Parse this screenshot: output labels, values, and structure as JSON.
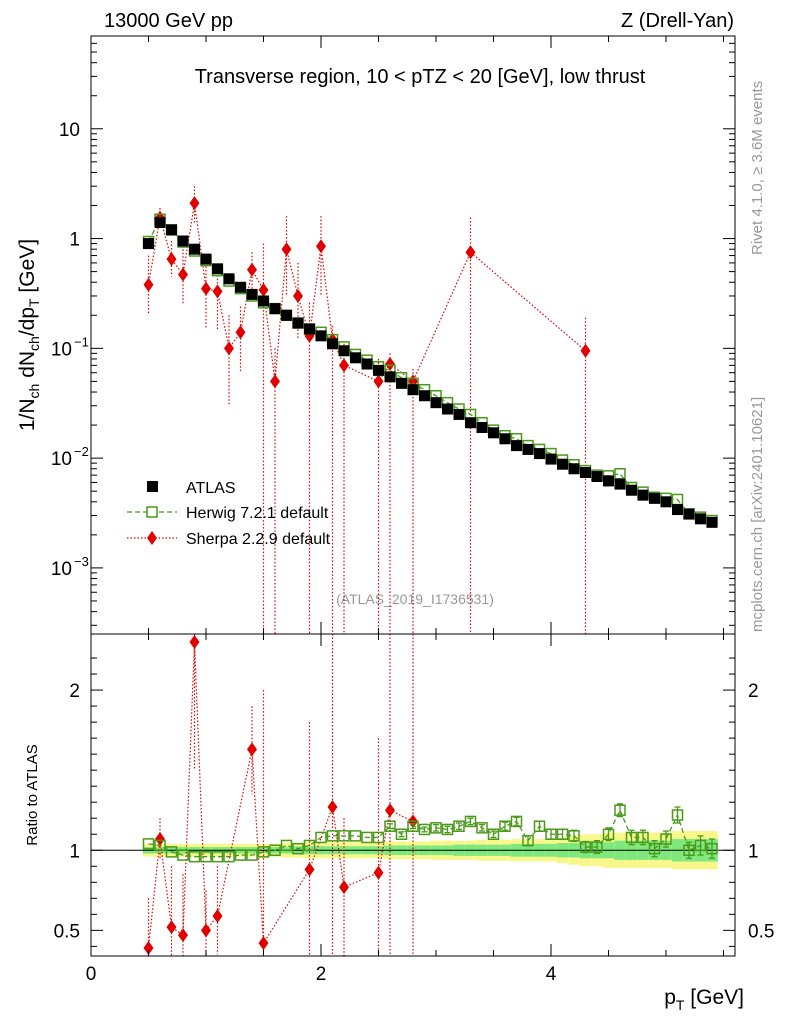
{
  "header": {
    "left": "13000 GeV pp",
    "right": "Z (Drell-Yan)",
    "title": "Transverse region, 10 < pTZ < 20 [GeV], low thrust"
  },
  "side": {
    "rivet": "Rivet 4.1.0, ≥ 3.6M events",
    "mcplots": "mcplots.cern.ch [arXiv:2401.10621]"
  },
  "watermark": "(ATLAS_2019_I1736531)",
  "axes": {
    "ylabel_main": "1/Nch dNch/dpT [GeV]",
    "ylabel_ratio": "Ratio to ATLAS",
    "xlabel": "pT [GeV]"
  },
  "legend": [
    {
      "label": "ATLAS",
      "color": "#000000"
    },
    {
      "label": "Herwig 7.2.1 default",
      "color": "#4a9a1a"
    },
    {
      "label": "Sherpa 2.2.9 default",
      "color": "#e00000"
    }
  ],
  "colors": {
    "band_green": "#7ee87e",
    "band_yellow": "#f8f88a",
    "herwig": "#4a9a1a",
    "sherpa": "#e00000",
    "atlas": "#000000"
  },
  "chart_data": [
    {
      "type": "scatter",
      "name": "main",
      "xlim": [
        0,
        5.6
      ],
      "ylim": [
        0.00025,
        70
      ],
      "yscale": "log",
      "xticks": [
        0,
        2,
        4
      ],
      "yticks": [
        {
          "v": 10,
          "label": "10"
        },
        {
          "v": 1,
          "label": "1"
        },
        {
          "v": 0.1,
          "label": "10",
          "sup": "−1"
        },
        {
          "v": 0.01,
          "label": "10",
          "sup": "−2"
        },
        {
          "v": 0.001,
          "label": "10",
          "sup": "−3"
        }
      ],
      "atlas": {
        "x": [
          0.5,
          0.6,
          0.7,
          0.8,
          0.9,
          1.0,
          1.1,
          1.2,
          1.3,
          1.4,
          1.5,
          1.6,
          1.7,
          1.8,
          1.9,
          2.0,
          2.1,
          2.2,
          2.3,
          2.4,
          2.5,
          2.6,
          2.7,
          2.8,
          2.9,
          3.0,
          3.1,
          3.2,
          3.3,
          3.4,
          3.5,
          3.6,
          3.7,
          3.8,
          3.9,
          4.0,
          4.1,
          4.2,
          4.3,
          4.4,
          4.5,
          4.6,
          4.7,
          4.8,
          4.9,
          5.0,
          5.1,
          5.2,
          5.3,
          5.4
        ],
        "y": [
          0.9,
          1.4,
          1.2,
          0.95,
          0.8,
          0.65,
          0.53,
          0.43,
          0.36,
          0.31,
          0.27,
          0.23,
          0.2,
          0.17,
          0.15,
          0.13,
          0.11,
          0.095,
          0.082,
          0.072,
          0.063,
          0.055,
          0.048,
          0.042,
          0.037,
          0.032,
          0.028,
          0.025,
          0.021,
          0.019,
          0.017,
          0.015,
          0.013,
          0.012,
          0.011,
          0.0098,
          0.0088,
          0.008,
          0.0074,
          0.0068,
          0.0062,
          0.0058,
          0.0051,
          0.0046,
          0.0043,
          0.004,
          0.0034,
          0.0031,
          0.0028,
          0.0026
        ]
      },
      "herwig": {
        "x": [
          0.5,
          0.6,
          0.7,
          0.8,
          0.9,
          1.0,
          1.1,
          1.2,
          1.3,
          1.4,
          1.5,
          1.6,
          1.7,
          1.8,
          1.9,
          2.0,
          2.1,
          2.2,
          2.3,
          2.4,
          2.5,
          2.6,
          2.7,
          2.8,
          2.9,
          3.0,
          3.1,
          3.2,
          3.3,
          3.4,
          3.5,
          3.6,
          3.7,
          3.8,
          3.9,
          4.0,
          4.1,
          4.2,
          4.3,
          4.4,
          4.5,
          4.6,
          4.7,
          4.8,
          4.9,
          5.0,
          5.1,
          5.2,
          5.3,
          5.4
        ],
        "y": [
          0.94,
          1.5,
          1.2,
          0.93,
          0.77,
          0.63,
          0.51,
          0.41,
          0.35,
          0.3,
          0.26,
          0.23,
          0.2,
          0.17,
          0.15,
          0.14,
          0.12,
          0.103,
          0.088,
          0.078,
          0.068,
          0.063,
          0.054,
          0.048,
          0.042,
          0.037,
          0.032,
          0.028,
          0.025,
          0.021,
          0.018,
          0.016,
          0.015,
          0.013,
          0.012,
          0.011,
          0.0096,
          0.0087,
          0.0077,
          0.007,
          0.0069,
          0.0072,
          0.0054,
          0.0049,
          0.0044,
          0.0043,
          0.0042,
          0.0031,
          0.0029,
          0.0027
        ]
      },
      "sherpa": {
        "x": [
          0.5,
          0.6,
          0.7,
          0.8,
          0.9,
          1.0,
          1.1,
          1.2,
          1.3,
          1.4,
          1.5,
          1.6,
          1.7,
          1.8,
          1.9,
          2.0,
          2.1,
          2.2,
          2.5,
          2.6,
          2.8,
          3.3,
          4.3
        ],
        "y": [
          0.38,
          1.55,
          0.65,
          0.47,
          2.1,
          0.35,
          0.33,
          0.1,
          0.14,
          0.52,
          0.34,
          0.05,
          0.8,
          0.3,
          0.13,
          0.85,
          0.12,
          0.07,
          0.05,
          0.072,
          0.05,
          0.75,
          0.095
        ],
        "err_hi": [
          0.7,
          1.9,
          0.95,
          0.8,
          3.0,
          0.6,
          0.5,
          0.2,
          0.24,
          0.75,
          0.9,
          0.1,
          1.6,
          0.6,
          0.26,
          1.6,
          0.16,
          0.11,
          0.08,
          0.09,
          0.065,
          1.55,
          0.19
        ],
        "err_lo": [
          0.2,
          1.3,
          0.45,
          0.25,
          1.4,
          0.15,
          0.15,
          0.03,
          0.06,
          0.3,
          0.0,
          0.0,
          0.3,
          0.12,
          0.0,
          0.3,
          0.0,
          0.0,
          0.0,
          0.0,
          0.0,
          0.0,
          0.0
        ]
      }
    },
    {
      "type": "scatter",
      "name": "ratio",
      "xlim": [
        0,
        5.6
      ],
      "ylim": [
        0.34,
        2.35
      ],
      "xticks": [
        0,
        2,
        4
      ],
      "yticks": [
        0.5,
        1,
        2
      ],
      "band_x": [
        0.5,
        0.6,
        0.7,
        0.8,
        0.9,
        1.0,
        1.1,
        1.2,
        1.3,
        1.4,
        1.5,
        1.6,
        1.7,
        1.8,
        1.9,
        2.0,
        2.1,
        2.2,
        2.3,
        2.4,
        2.5,
        2.6,
        2.7,
        2.8,
        2.9,
        3.0,
        3.1,
        3.2,
        3.3,
        3.4,
        3.5,
        3.6,
        3.7,
        3.8,
        3.9,
        4.0,
        4.1,
        4.2,
        4.3,
        4.4,
        4.5,
        4.6,
        4.7,
        4.8,
        4.9,
        5.0,
        5.1,
        5.2,
        5.3,
        5.4
      ],
      "band_inner": [
        0.02,
        0.02,
        0.02,
        0.02,
        0.02,
        0.02,
        0.02,
        0.02,
        0.02,
        0.02,
        0.02,
        0.02,
        0.02,
        0.025,
        0.025,
        0.025,
        0.025,
        0.025,
        0.025,
        0.025,
        0.025,
        0.03,
        0.03,
        0.03,
        0.03,
        0.03,
        0.03,
        0.035,
        0.035,
        0.035,
        0.035,
        0.035,
        0.04,
        0.04,
        0.04,
        0.04,
        0.045,
        0.045,
        0.05,
        0.05,
        0.05,
        0.06,
        0.06,
        0.06,
        0.06,
        0.06,
        0.07,
        0.07,
        0.07,
        0.07
      ],
      "band_outer": [
        0.04,
        0.04,
        0.04,
        0.04,
        0.04,
        0.04,
        0.04,
        0.04,
        0.04,
        0.04,
        0.04,
        0.04,
        0.045,
        0.045,
        0.05,
        0.05,
        0.05,
        0.05,
        0.05,
        0.05,
        0.05,
        0.055,
        0.055,
        0.055,
        0.055,
        0.06,
        0.06,
        0.06,
        0.06,
        0.065,
        0.065,
        0.065,
        0.07,
        0.07,
        0.07,
        0.07,
        0.08,
        0.09,
        0.1,
        0.1,
        0.11,
        0.11,
        0.11,
        0.11,
        0.11,
        0.11,
        0.12,
        0.12,
        0.12,
        0.12
      ],
      "herwig": {
        "x": [
          0.5,
          0.6,
          0.7,
          0.8,
          0.9,
          1.0,
          1.1,
          1.2,
          1.3,
          1.4,
          1.5,
          1.6,
          1.7,
          1.8,
          1.9,
          2.0,
          2.1,
          2.2,
          2.3,
          2.4,
          2.5,
          2.6,
          2.7,
          2.8,
          2.9,
          3.0,
          3.1,
          3.2,
          3.3,
          3.4,
          3.5,
          3.6,
          3.7,
          3.8,
          3.9,
          4.0,
          4.1,
          4.2,
          4.3,
          4.4,
          4.5,
          4.6,
          4.7,
          4.8,
          4.9,
          5.0,
          5.1,
          5.2,
          5.3,
          5.4
        ],
        "y": [
          1.04,
          1.03,
          0.99,
          0.97,
          0.96,
          0.96,
          0.96,
          0.96,
          0.97,
          0.97,
          0.99,
          1.0,
          1.03,
          1.01,
          1.03,
          1.08,
          1.09,
          1.09,
          1.09,
          1.08,
          1.08,
          1.15,
          1.1,
          1.15,
          1.13,
          1.14,
          1.13,
          1.15,
          1.18,
          1.14,
          1.1,
          1.15,
          1.18,
          1.06,
          1.15,
          1.1,
          1.1,
          1.09,
          1.02,
          1.02,
          1.1,
          1.25,
          1.08,
          1.08,
          1.01,
          1.07,
          1.22,
          1.0,
          1.03,
          1.01
        ],
        "err": [
          0.01,
          0.01,
          0.01,
          0.01,
          0.01,
          0.01,
          0.01,
          0.01,
          0.01,
          0.01,
          0.01,
          0.01,
          0.01,
          0.01,
          0.01,
          0.01,
          0.01,
          0.01,
          0.01,
          0.01,
          0.01,
          0.015,
          0.015,
          0.015,
          0.015,
          0.02,
          0.02,
          0.02,
          0.02,
          0.02,
          0.02,
          0.025,
          0.025,
          0.03,
          0.03,
          0.03,
          0.03,
          0.035,
          0.035,
          0.04,
          0.04,
          0.04,
          0.045,
          0.045,
          0.05,
          0.05,
          0.05,
          0.05,
          0.06,
          0.06
        ]
      },
      "sherpa": {
        "x": [
          0.5,
          0.6,
          0.7,
          0.8,
          0.9,
          1.0,
          1.1,
          1.4,
          1.5,
          1.9,
          2.1,
          2.2,
          2.5,
          2.6,
          2.8
        ],
        "y": [
          0.39,
          1.07,
          0.52,
          0.47,
          2.3,
          0.5,
          0.59,
          1.63,
          0.42,
          0.88,
          1.27,
          0.77,
          0.86,
          1.25,
          1.18
        ],
        "err_hi": [
          0.7,
          1.2,
          0.9,
          0.85,
          2.5,
          0.75,
          0.9,
          1.9,
          2.0,
          1.8,
          2.5,
          1.2,
          1.7,
          2.5,
          2.5
        ],
        "err_lo": [
          0.2,
          0.95,
          0.3,
          0.25,
          1.5,
          0.3,
          0.35,
          1.35,
          0.2,
          0.0,
          0.0,
          0.0,
          0.0,
          0.0,
          0.0
        ]
      }
    }
  ]
}
